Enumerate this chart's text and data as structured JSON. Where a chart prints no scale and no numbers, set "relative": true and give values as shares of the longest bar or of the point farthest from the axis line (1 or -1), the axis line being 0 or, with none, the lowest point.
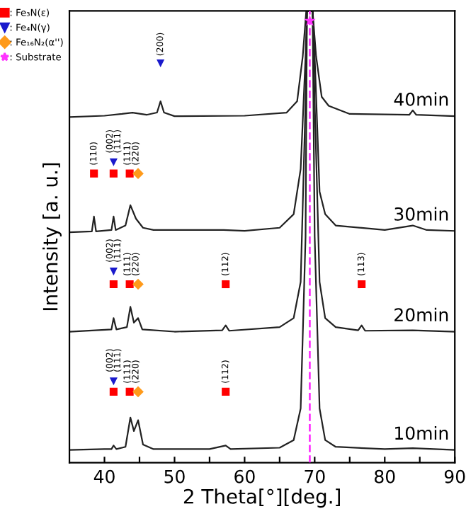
{
  "chart_data": {
    "type": "line",
    "relative": true,
    "xlabel": "2 Theta[°][deg.]",
    "ylabel": "Intensity [a. u.]",
    "xlim": [
      35,
      90
    ],
    "xticks": [
      40,
      {
        "value": 45,
        "label": null
      },
      50,
      {
        "value": 55,
        "label": null
      },
      60,
      {
        "value": 65,
        "label": null
      },
      70,
      {
        "value": 75,
        "label": null
      },
      80,
      {
        "value": 85,
        "label": null
      },
      90
    ],
    "grid": false,
    "legend": "top left",
    "series": [
      {
        "name": "10min",
        "color": "#222222",
        "marker": "none",
        "x": [
          35,
          40,
          41.0,
          41.3,
          41.7,
          43.0,
          43.7,
          44.2,
          44.8,
          45.5,
          47,
          55,
          57.3,
          58,
          65,
          67,
          68,
          68.7,
          68.9,
          69.7,
          70.0,
          70.7,
          71.5,
          73,
          80,
          84,
          90
        ],
        "values": [
          0.028,
          0.03,
          0.03,
          0.038,
          0.03,
          0.035,
          0.1,
          0.07,
          0.094,
          0.04,
          0.03,
          0.03,
          0.038,
          0.03,
          0.033,
          0.05,
          0.12,
          0.5,
          1,
          1,
          0.5,
          0.12,
          0.05,
          0.035,
          0.03,
          0.032,
          0.028
        ]
      },
      {
        "name": "20min",
        "color": "#222222",
        "marker": "none",
        "x": [
          35,
          41.0,
          41.3,
          41.7,
          43.2,
          43.7,
          44.2,
          44.8,
          45.4,
          50,
          56.8,
          57.3,
          57.8,
          65,
          67,
          68,
          68.7,
          68.9,
          69.7,
          70.0,
          70.7,
          71.5,
          73,
          76.2,
          76.7,
          77.2,
          84,
          90
        ],
        "values": [
          0.29,
          0.295,
          0.32,
          0.295,
          0.3,
          0.345,
          0.31,
          0.32,
          0.295,
          0.29,
          0.293,
          0.304,
          0.292,
          0.3,
          0.32,
          0.4,
          0.8,
          1,
          1,
          0.8,
          0.4,
          0.32,
          0.3,
          0.293,
          0.304,
          0.292,
          0.293,
          0.29
        ]
      },
      {
        "name": "30min",
        "color": "#222222",
        "marker": "none",
        "x": [
          35,
          38.2,
          38.5,
          38.8,
          41.0,
          41.3,
          41.6,
          43.0,
          43.7,
          44.5,
          45.5,
          47,
          57,
          60,
          65,
          67,
          68,
          68.7,
          68.9,
          69.7,
          70.0,
          70.7,
          71.5,
          73,
          80,
          84,
          86,
          90
        ],
        "values": [
          0.51,
          0.512,
          0.545,
          0.512,
          0.515,
          0.545,
          0.515,
          0.525,
          0.57,
          0.54,
          0.52,
          0.515,
          0.515,
          0.513,
          0.52,
          0.55,
          0.65,
          0.9,
          1,
          1,
          0.9,
          0.6,
          0.55,
          0.525,
          0.515,
          0.525,
          0.515,
          0.513
        ]
      },
      {
        "name": "40min",
        "color": "#222222",
        "marker": "none",
        "x": [
          35,
          40,
          42.5,
          44,
          46,
          47.5,
          48.0,
          48.5,
          50,
          60,
          66,
          67.5,
          68.3,
          68.8,
          69.7,
          70.2,
          71,
          72,
          75,
          83.5,
          84,
          84.5,
          90
        ],
        "values": [
          0.765,
          0.768,
          0.772,
          0.775,
          0.77,
          0.775,
          0.8,
          0.775,
          0.767,
          0.768,
          0.775,
          0.8,
          0.9,
          1,
          1,
          0.9,
          0.81,
          0.79,
          0.772,
          0.77,
          0.78,
          0.77,
          0.767
        ]
      },
      {
        "type": "scatter",
        "name": ": Fe₃N(ε)",
        "color": "#ff0000",
        "marker": "square",
        "x": [
          41.3,
          43.6,
          57.3,
          41.3,
          43.6,
          57.3,
          76.7,
          38.5,
          41.3,
          43.6
        ],
        "values": [
          0.157,
          0.157,
          0.157,
          0.395,
          0.395,
          0.395,
          0.395,
          0.64,
          0.64,
          0.64
        ]
      },
      {
        "type": "scatter",
        "name": ": Fe₄N(γ)",
        "color": "#1a1acc",
        "marker": "triangle",
        "x": [
          41.3,
          41.3,
          41.3,
          48.0
        ],
        "values": [
          0.18,
          0.423,
          0.665,
          0.884
        ]
      },
      {
        "type": "scatter",
        "name": ": Fe₁₆N₂(α'')",
        "color": "#ff9a1a",
        "marker": "diamond",
        "x": [
          44.8,
          44.8,
          44.8
        ],
        "values": [
          0.157,
          0.395,
          0.64
        ]
      },
      {
        "type": "scatter",
        "name": ": Substrate",
        "color": "#ff33ff",
        "marker": "star",
        "x": [
          69.3
        ],
        "values": [
          0.978
        ]
      }
    ],
    "ref_lines": [
      {
        "axis": "x",
        "value": 69.3,
        "label": null,
        "color": "#ff33ff",
        "line_style": "dashed"
      }
    ],
    "annotations": [
      {
        "text": "(002)",
        "x": 40.8,
        "y": 0.2
      },
      {
        "text": "(111)",
        "x": 41.9,
        "y": 0.2
      },
      {
        "text": "(111)",
        "x": 43.3,
        "y": 0.175
      },
      {
        "text": "(220)",
        "x": 44.5,
        "y": 0.175
      },
      {
        "text": "(112)",
        "x": 57.3,
        "y": 0.175
      },
      {
        "text": "(002)",
        "x": 40.8,
        "y": 0.443
      },
      {
        "text": "(111)",
        "x": 41.9,
        "y": 0.443
      },
      {
        "text": "(111)",
        "x": 43.3,
        "y": 0.413
      },
      {
        "text": "(220)",
        "x": 44.5,
        "y": 0.413
      },
      {
        "text": "(112)",
        "x": 57.3,
        "y": 0.413
      },
      {
        "text": "(113)",
        "x": 76.7,
        "y": 0.413
      },
      {
        "text": "(110)",
        "x": 38.5,
        "y": 0.658
      },
      {
        "text": "(002)",
        "x": 40.8,
        "y": 0.685
      },
      {
        "text": "(111)",
        "x": 41.9,
        "y": 0.685
      },
      {
        "text": "(111)",
        "x": 43.3,
        "y": 0.658
      },
      {
        "text": "(220)",
        "x": 44.5,
        "y": 0.658
      },
      {
        "text": "(200)",
        "x": 48.0,
        "y": 0.9
      }
    ]
  }
}
